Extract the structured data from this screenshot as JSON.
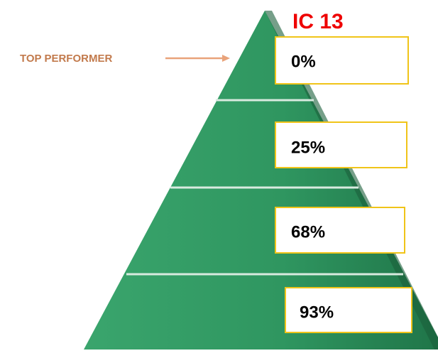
{
  "title": "IC 13",
  "annotation": "TOP PERFORMER",
  "tiers": [
    {
      "label": "0%"
    },
    {
      "label": "25%"
    },
    {
      "label": "68%"
    },
    {
      "label": "93%"
    }
  ]
}
